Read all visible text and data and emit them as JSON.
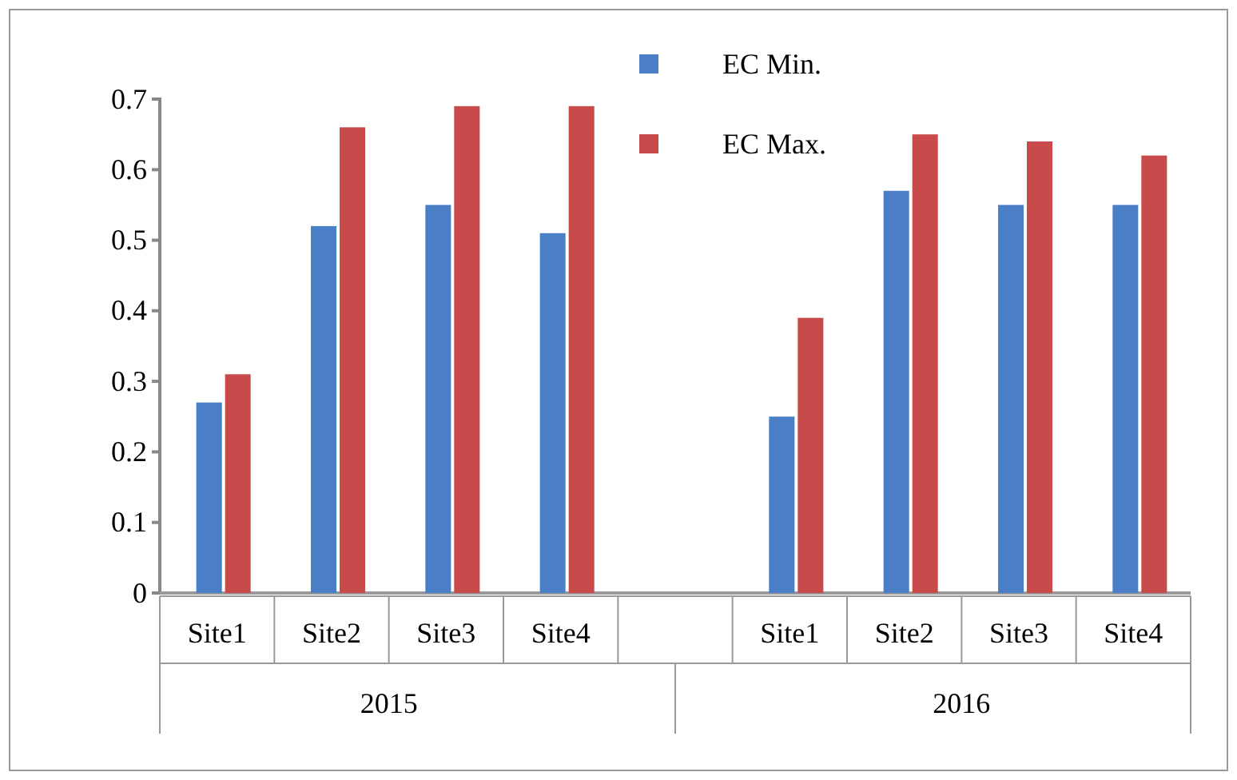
{
  "chart_data": {
    "type": "bar",
    "categories": [
      "Site1",
      "Site2",
      "Site3",
      "Site4",
      null,
      "Site1",
      "Site2",
      "Site3",
      "Site4"
    ],
    "series": [
      {
        "name": "EC Min.",
        "color": "#4a7fc8",
        "values": [
          0.27,
          0.52,
          0.55,
          0.51,
          null,
          0.25,
          0.57,
          0.55,
          0.55
        ]
      },
      {
        "name": "EC Max.",
        "color": "#c84a4a",
        "values": [
          0.31,
          0.66,
          0.69,
          0.69,
          null,
          0.39,
          0.65,
          0.64,
          0.62
        ]
      }
    ],
    "annotations": [
      "2015",
      "2016"
    ],
    "ylim": [
      0,
      0.7
    ],
    "yticks": [
      0,
      0.1,
      0.2,
      0.3,
      0.4,
      0.5,
      0.6,
      0.7
    ],
    "legend": "top right"
  }
}
